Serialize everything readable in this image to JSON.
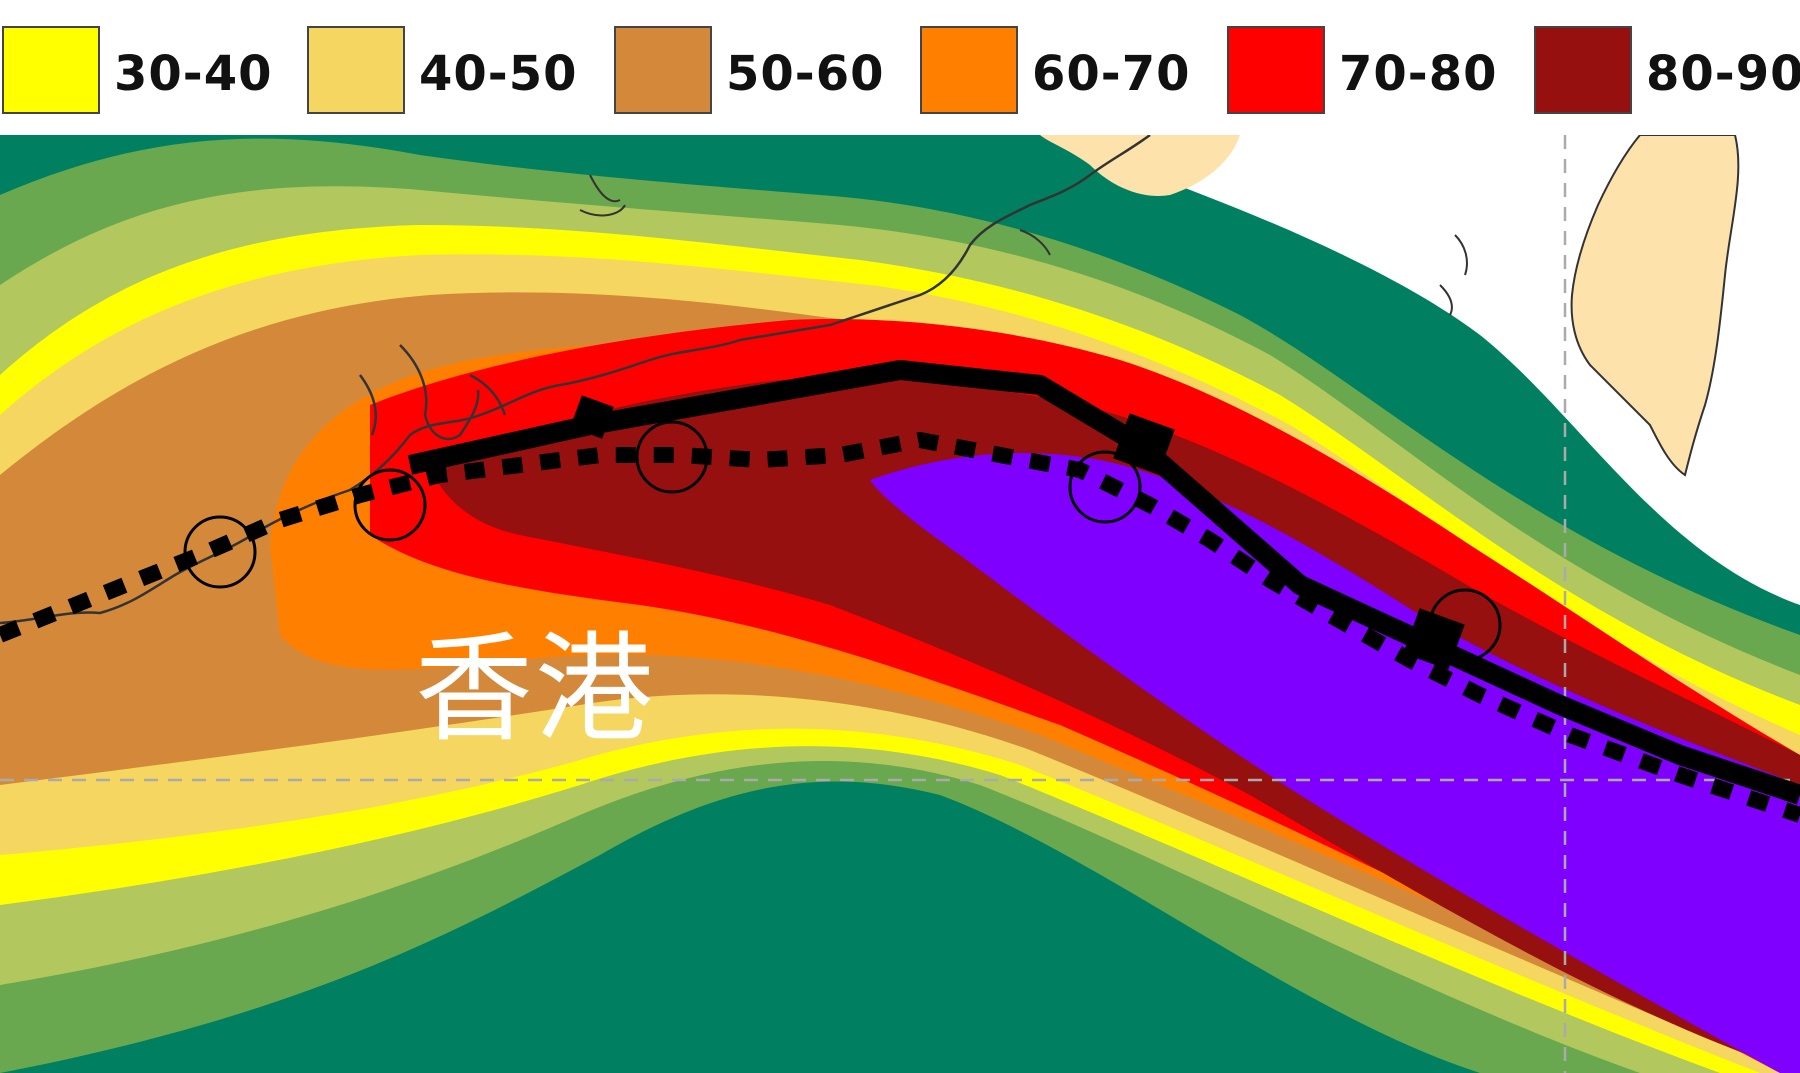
{
  "legend": {
    "items": [
      {
        "label": "30-40",
        "color": "#ffff00"
      },
      {
        "label": "40-50",
        "color": "#f5d660"
      },
      {
        "label": "50-60",
        "color": "#d4883a"
      },
      {
        "label": "60-70",
        "color": "#ff8000"
      },
      {
        "label": "70-80",
        "color": "#ff0000"
      },
      {
        "label": "80-90",
        "color": "#961010"
      }
    ]
  },
  "map": {
    "city_label": "香港",
    "colors": {
      "sea": "#ffffff",
      "land": "#fde2ab",
      "band_outer_teal": "#008060",
      "band_green": "#6aa84f",
      "band_light_green": "#b2c85e",
      "band_30_40": "#ffff00",
      "band_40_50": "#f5d660",
      "band_50_60": "#d4883a",
      "band_60_70": "#ff8000",
      "band_70_80": "#ff0000",
      "band_80_90": "#961010",
      "band_90_plus": "#8000ff",
      "track": "#000000",
      "coastline": "#333333",
      "gridline": "#aaaaaa"
    }
  }
}
